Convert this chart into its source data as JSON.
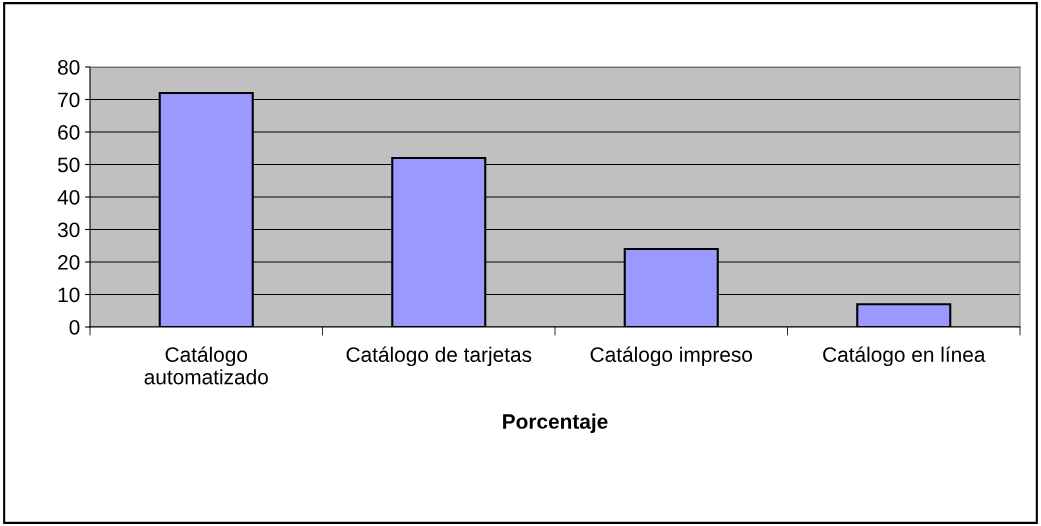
{
  "chart_data": {
    "type": "bar",
    "xlabel": "Porcentaje",
    "categories": [
      "Catálogo\nautomatizado",
      "Catálogo de tarjetas",
      "Catálogo impreso",
      "Catálogo en línea"
    ],
    "values": [
      72,
      52,
      24,
      7
    ],
    "color": "#9999ff",
    "ylim": [
      0,
      80
    ],
    "yticks": [
      0,
      10,
      20,
      30,
      40,
      50,
      60,
      70,
      80
    ],
    "grid": "y"
  }
}
